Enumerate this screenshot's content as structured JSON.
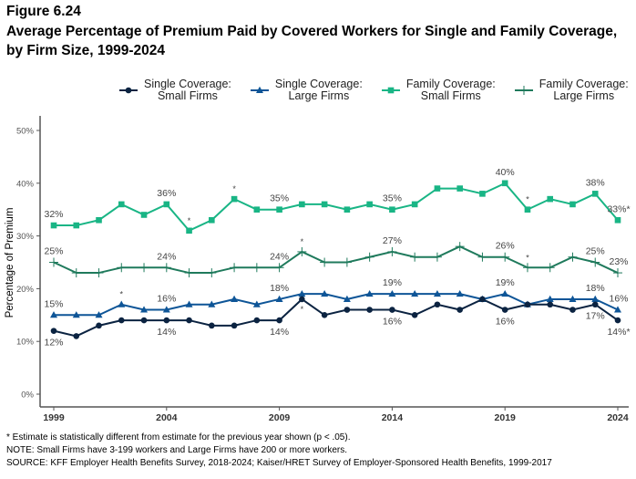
{
  "figure_label": "Figure 6.24",
  "title": "Average Percentage of Premium Paid by Covered Workers for Single and Family Coverage, by Firm Size, 1999-2024",
  "notes": [
    "* Estimate is statistically different from estimate for the previous year shown (p < .05).",
    "NOTE: Small Firms have 3-199 workers and Large Firms have 200 or more workers.",
    "SOURCE: KFF Employer Health Benefits Survey, 2018-2024; Kaiser/HRET Survey of Employer-Sponsored Health Benefits, 1999-2017"
  ],
  "chart_data": {
    "type": "line",
    "xlabel": "",
    "ylabel": "Percentage of Premium",
    "ylim": [
      0,
      50
    ],
    "yticks": [
      "0%",
      "10%",
      "20%",
      "30%",
      "40%",
      "50%"
    ],
    "xticks": [
      "1999",
      "2004",
      "2009",
      "2014",
      "2019",
      "2024"
    ],
    "x": [
      1999,
      2000,
      2001,
      2002,
      2003,
      2004,
      2005,
      2006,
      2007,
      2008,
      2009,
      2010,
      2011,
      2012,
      2013,
      2014,
      2015,
      2016,
      2017,
      2018,
      2019,
      2020,
      2021,
      2022,
      2023,
      2024
    ],
    "legend_position": "top",
    "grid": false,
    "series": [
      {
        "name": "Single Coverage:\nSmall Firms",
        "color": "#0b2341",
        "marker": "circle",
        "label_pos": "below",
        "values": [
          12,
          11,
          13,
          14,
          14,
          14,
          14,
          13,
          13,
          14,
          14,
          18,
          15,
          16,
          16,
          16,
          15,
          17,
          16,
          18,
          16,
          17,
          17,
          16,
          17,
          14
        ],
        "significant": [
          2010,
          2024
        ],
        "labels": {
          "1999": "12%",
          "2004": "14%",
          "2009": "14%",
          "2014": "16%",
          "2019": "16%",
          "2023": "17%",
          "2024": "14%*"
        }
      },
      {
        "name": "Single Coverage:\nLarge Firms",
        "color": "#0e5597",
        "marker": "triangle",
        "label_pos": "above",
        "values": [
          15,
          15,
          15,
          17,
          16,
          16,
          17,
          17,
          18,
          17,
          18,
          19,
          19,
          18,
          19,
          19,
          19,
          19,
          19,
          18,
          19,
          17,
          18,
          18,
          18,
          16
        ],
        "significant": [
          2002
        ],
        "labels": {
          "1999": "15%",
          "2004": "16%",
          "2009": "18%",
          "2014": "19%",
          "2019": "19%",
          "2023": "18%",
          "2024": "16%"
        }
      },
      {
        "name": "Family Coverage:\nSmall Firms",
        "color": "#19b585",
        "marker": "square",
        "label_pos": "above",
        "values": [
          32,
          32,
          33,
          36,
          34,
          36,
          31,
          33,
          37,
          35,
          35,
          36,
          36,
          35,
          36,
          35,
          36,
          39,
          39,
          38,
          40,
          35,
          37,
          36,
          38,
          33
        ],
        "significant": [
          2005,
          2007,
          2020,
          2024
        ],
        "labels": {
          "1999": "32%",
          "2004": "36%",
          "2009": "35%",
          "2014": "35%",
          "2019": "40%",
          "2023": "38%",
          "2024": "33%*"
        }
      },
      {
        "name": "Family Coverage:\nLarge Firms",
        "color": "#1f7a5c",
        "marker": "plus",
        "label_pos": "above",
        "values": [
          25,
          23,
          23,
          24,
          24,
          24,
          23,
          23,
          24,
          24,
          24,
          27,
          25,
          25,
          26,
          27,
          26,
          26,
          28,
          26,
          26,
          24,
          24,
          26,
          25,
          23
        ],
        "significant": [
          2010,
          2020
        ],
        "labels": {
          "1999": "25%",
          "2004": "24%",
          "2009": "24%",
          "2014": "27%",
          "2019": "26%",
          "2023": "25%",
          "2024": "23%"
        }
      }
    ]
  }
}
